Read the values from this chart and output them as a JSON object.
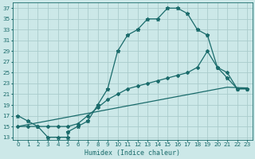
{
  "xlabel": "Humidex (Indice chaleur)",
  "bg_color": "#cce8e8",
  "grid_color": "#aacccc",
  "line_color": "#1a6b6b",
  "xlim": [
    -0.5,
    23.5
  ],
  "ylim": [
    12.5,
    38
  ],
  "xtick_labels": [
    "0",
    "1",
    "2",
    "3",
    "4",
    "5",
    "6",
    "7",
    "8",
    "9",
    "10",
    "11",
    "12",
    "13",
    "14",
    "15",
    "16",
    "17",
    "18",
    "19",
    "20",
    "21",
    "22",
    "23"
  ],
  "xticks": [
    0,
    1,
    2,
    3,
    4,
    5,
    6,
    7,
    8,
    9,
    10,
    11,
    12,
    13,
    14,
    15,
    16,
    17,
    18,
    19,
    20,
    21,
    22,
    23
  ],
  "yticks": [
    13,
    15,
    17,
    19,
    21,
    23,
    25,
    27,
    29,
    31,
    33,
    35,
    37
  ],
  "curve1_x": [
    0,
    1,
    2,
    3,
    4,
    5,
    5,
    6,
    7,
    8,
    9,
    10,
    11,
    12,
    13,
    14,
    15,
    16,
    17,
    18,
    19,
    20,
    21,
    22,
    23
  ],
  "curve1_y": [
    17,
    16,
    15,
    13,
    13,
    13,
    14,
    15,
    16,
    19,
    22,
    29,
    32,
    33,
    35,
    35,
    37,
    37,
    36,
    33,
    32,
    26,
    24,
    22,
    22
  ],
  "curve2_x": [
    0,
    1,
    2,
    3,
    4,
    5,
    6,
    7,
    8,
    9,
    10,
    11,
    12,
    13,
    14,
    15,
    16,
    17,
    18,
    19,
    20,
    21,
    22,
    23
  ],
  "curve2_y": [
    15,
    15,
    15,
    15,
    15,
    15,
    15.5,
    17,
    18.5,
    20,
    21,
    22,
    22.5,
    23,
    23.5,
    24,
    24.5,
    25,
    26,
    29,
    26,
    25,
    22,
    22
  ],
  "curve3_x": [
    0,
    1,
    2,
    3,
    4,
    5,
    6,
    7,
    8,
    9,
    10,
    11,
    12,
    13,
    14,
    15,
    16,
    17,
    18,
    19,
    20,
    21,
    22,
    23
  ],
  "curve3_y": [
    15,
    15.35,
    15.7,
    16.04,
    16.39,
    16.74,
    17.09,
    17.43,
    17.78,
    18.13,
    18.48,
    18.83,
    19.17,
    19.52,
    19.87,
    20.22,
    20.57,
    20.91,
    21.26,
    21.61,
    21.96,
    22.3,
    22.22,
    22.17
  ],
  "markersize": 2.0,
  "linewidth": 0.9,
  "tick_fontsize": 5.2,
  "xlabel_fontsize": 6.0
}
